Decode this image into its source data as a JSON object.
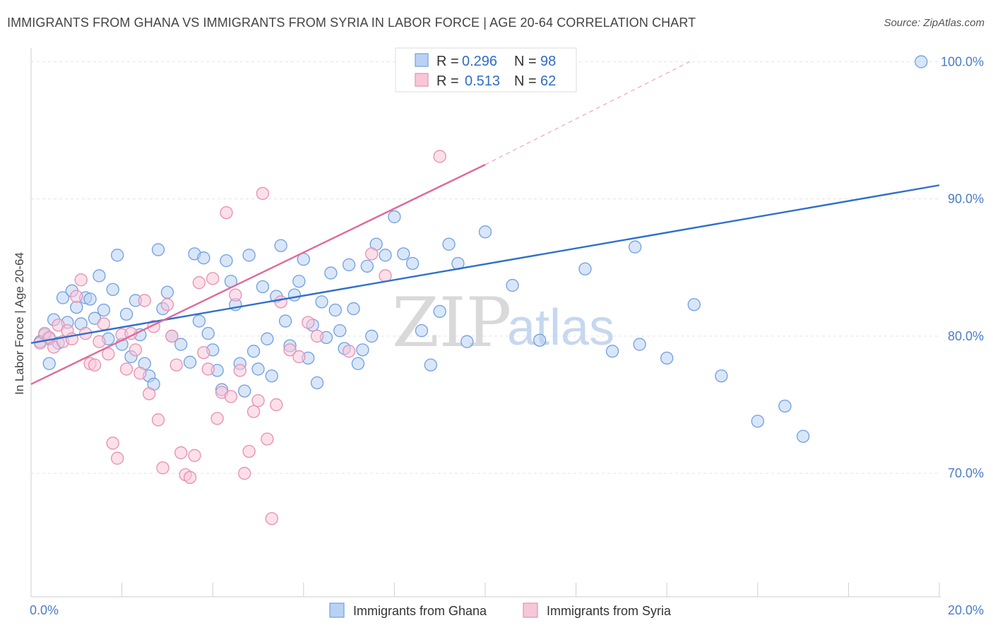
{
  "header": {
    "title": "IMMIGRANTS FROM GHANA VS IMMIGRANTS FROM SYRIA IN LABOR FORCE | AGE 20-64 CORRELATION CHART",
    "source": "Source: ZipAtlas.com"
  },
  "watermark": {
    "zip": "ZIP",
    "atlas": "atlas"
  },
  "legend_top": [
    {
      "r_label": "R =",
      "r_value": "0.296",
      "n_label": "N =",
      "n_value": "98"
    },
    {
      "r_label": "R =",
      "r_value": "0.513",
      "n_label": "N =",
      "n_value": "62"
    }
  ],
  "chart_data": {
    "type": "scatter",
    "xlabel": "",
    "ylabel": "In Labor Force | Age 20-64",
    "xlim": [
      0,
      20
    ],
    "ylim": [
      61,
      101
    ],
    "x_tick_labels": [
      {
        "value": 0,
        "label": "0.0%"
      },
      {
        "value": 20,
        "label": "20.0%"
      }
    ],
    "y_tick_labels": [
      {
        "value": 70,
        "label": "70.0%"
      },
      {
        "value": 80,
        "label": "80.0%"
      },
      {
        "value": 90,
        "label": "90.0%"
      },
      {
        "value": 100,
        "label": "100.0%"
      }
    ],
    "legend_placement": "top-center",
    "grid": true,
    "series": [
      {
        "name": "Immigrants from Ghana",
        "color": "#6fa0e0",
        "fill": "#b9d2f3",
        "line_color": "#2f6fcc",
        "trend": {
          "x": [
            0,
            20
          ],
          "y": [
            79.5,
            91.0
          ]
        },
        "points": [
          [
            0.3,
            80.1
          ],
          [
            0.4,
            79.8
          ],
          [
            0.5,
            81.2
          ],
          [
            0.6,
            79.5
          ],
          [
            0.7,
            82.8
          ],
          [
            0.8,
            81.0
          ],
          [
            0.9,
            83.3
          ],
          [
            1.0,
            82.1
          ],
          [
            1.1,
            80.9
          ],
          [
            1.2,
            82.8
          ],
          [
            1.3,
            82.7
          ],
          [
            1.4,
            81.3
          ],
          [
            1.5,
            84.4
          ],
          [
            1.6,
            81.9
          ],
          [
            1.7,
            79.8
          ],
          [
            1.8,
            83.4
          ],
          [
            1.9,
            85.9
          ],
          [
            2.0,
            79.4
          ],
          [
            2.1,
            81.6
          ],
          [
            2.2,
            78.5
          ],
          [
            2.3,
            82.6
          ],
          [
            2.4,
            80.1
          ],
          [
            2.5,
            78.0
          ],
          [
            2.6,
            77.1
          ],
          [
            2.7,
            76.5
          ],
          [
            2.8,
            86.3
          ],
          [
            2.9,
            82.0
          ],
          [
            3.0,
            83.2
          ],
          [
            3.1,
            80.0
          ],
          [
            3.3,
            79.4
          ],
          [
            3.5,
            78.1
          ],
          [
            3.6,
            86.0
          ],
          [
            3.7,
            81.1
          ],
          [
            3.8,
            85.7
          ],
          [
            3.9,
            80.2
          ],
          [
            4.0,
            79.0
          ],
          [
            4.1,
            77.5
          ],
          [
            4.2,
            76.1
          ],
          [
            4.3,
            85.5
          ],
          [
            4.4,
            84.0
          ],
          [
            4.5,
            82.3
          ],
          [
            4.6,
            78.0
          ],
          [
            4.7,
            76.0
          ],
          [
            4.8,
            85.9
          ],
          [
            4.9,
            78.9
          ],
          [
            5.0,
            77.6
          ],
          [
            5.1,
            83.6
          ],
          [
            5.2,
            79.8
          ],
          [
            5.3,
            77.1
          ],
          [
            5.4,
            82.9
          ],
          [
            5.5,
            86.6
          ],
          [
            5.6,
            81.1
          ],
          [
            5.7,
            79.3
          ],
          [
            5.8,
            83.0
          ],
          [
            5.9,
            84.0
          ],
          [
            6.0,
            85.6
          ],
          [
            6.1,
            78.4
          ],
          [
            6.2,
            80.8
          ],
          [
            6.3,
            76.6
          ],
          [
            6.4,
            82.5
          ],
          [
            6.5,
            79.9
          ],
          [
            6.6,
            84.6
          ],
          [
            6.7,
            81.9
          ],
          [
            6.8,
            80.4
          ],
          [
            6.9,
            79.1
          ],
          [
            7.0,
            85.2
          ],
          [
            7.1,
            82.0
          ],
          [
            7.2,
            78.0
          ],
          [
            7.3,
            79.0
          ],
          [
            7.4,
            85.1
          ],
          [
            7.5,
            80.0
          ],
          [
            7.6,
            86.7
          ],
          [
            7.8,
            85.9
          ],
          [
            8.0,
            88.7
          ],
          [
            8.2,
            86.0
          ],
          [
            8.4,
            85.3
          ],
          [
            8.6,
            80.4
          ],
          [
            8.8,
            77.9
          ],
          [
            9.0,
            81.8
          ],
          [
            9.2,
            86.7
          ],
          [
            9.4,
            85.3
          ],
          [
            9.6,
            79.6
          ],
          [
            10.0,
            87.6
          ],
          [
            10.6,
            83.7
          ],
          [
            11.2,
            79.7
          ],
          [
            12.2,
            84.9
          ],
          [
            12.8,
            78.9
          ],
          [
            13.3,
            86.5
          ],
          [
            13.4,
            79.4
          ],
          [
            14.0,
            78.4
          ],
          [
            14.6,
            82.3
          ],
          [
            15.2,
            77.1
          ],
          [
            16.0,
            73.8
          ],
          [
            16.6,
            74.9
          ],
          [
            17.0,
            72.7
          ],
          [
            19.6,
            100.0
          ],
          [
            0.2,
            79.6
          ],
          [
            0.4,
            78.0
          ]
        ]
      },
      {
        "name": "Immigrants from Syria",
        "color": "#e78fb0",
        "fill": "#f7c7d8",
        "line_color": "#e0689a",
        "trend": {
          "x": [
            0,
            10
          ],
          "y": [
            76.5,
            92.5
          ]
        },
        "trend_dashed": {
          "x": [
            10,
            14.5
          ],
          "y": [
            92.5,
            100.0
          ]
        },
        "points": [
          [
            0.2,
            79.5
          ],
          [
            0.3,
            80.2
          ],
          [
            0.4,
            79.9
          ],
          [
            0.5,
            79.2
          ],
          [
            0.6,
            80.8
          ],
          [
            0.7,
            79.6
          ],
          [
            0.8,
            80.4
          ],
          [
            0.9,
            79.8
          ],
          [
            1.0,
            82.9
          ],
          [
            1.1,
            84.1
          ],
          [
            1.2,
            80.2
          ],
          [
            1.3,
            78.0
          ],
          [
            1.4,
            77.9
          ],
          [
            1.5,
            79.6
          ],
          [
            1.6,
            80.9
          ],
          [
            1.7,
            78.7
          ],
          [
            1.8,
            72.2
          ],
          [
            1.9,
            71.1
          ],
          [
            2.0,
            80.1
          ],
          [
            2.1,
            77.6
          ],
          [
            2.2,
            80.2
          ],
          [
            2.3,
            79.0
          ],
          [
            2.4,
            77.3
          ],
          [
            2.5,
            82.6
          ],
          [
            2.6,
            75.8
          ],
          [
            2.7,
            80.7
          ],
          [
            2.8,
            73.9
          ],
          [
            2.9,
            70.4
          ],
          [
            3.0,
            82.3
          ],
          [
            3.1,
            80.0
          ],
          [
            3.2,
            77.9
          ],
          [
            3.3,
            71.5
          ],
          [
            3.4,
            69.9
          ],
          [
            3.5,
            69.7
          ],
          [
            3.6,
            71.3
          ],
          [
            3.7,
            83.9
          ],
          [
            3.8,
            78.8
          ],
          [
            3.9,
            77.6
          ],
          [
            4.0,
            84.2
          ],
          [
            4.1,
            74.0
          ],
          [
            4.2,
            75.9
          ],
          [
            4.3,
            89.0
          ],
          [
            4.4,
            75.6
          ],
          [
            4.5,
            83.0
          ],
          [
            4.6,
            77.5
          ],
          [
            4.7,
            70.0
          ],
          [
            4.8,
            71.6
          ],
          [
            4.9,
            74.5
          ],
          [
            5.0,
            75.3
          ],
          [
            5.1,
            90.4
          ],
          [
            5.2,
            72.5
          ],
          [
            5.3,
            66.7
          ],
          [
            5.4,
            75.0
          ],
          [
            5.5,
            82.5
          ],
          [
            5.7,
            79.0
          ],
          [
            5.9,
            78.5
          ],
          [
            6.1,
            81.0
          ],
          [
            6.3,
            80.0
          ],
          [
            7.0,
            78.9
          ],
          [
            7.5,
            86.0
          ],
          [
            7.8,
            84.4
          ],
          [
            9.0,
            93.1
          ]
        ]
      }
    ]
  },
  "legend_bottom": [
    {
      "label": "Immigrants from Ghana"
    },
    {
      "label": "Immigrants from Syria"
    }
  ]
}
